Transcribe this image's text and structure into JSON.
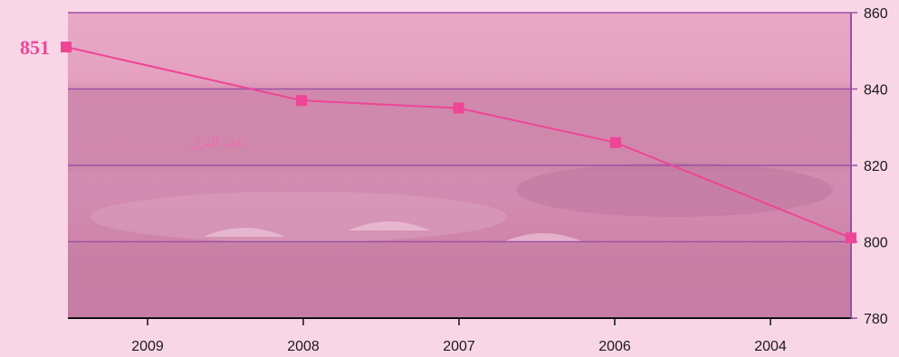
{
  "colors": {
    "page_background": "#f9d6e6",
    "plot_background": "#e7a6c3",
    "plot_background_dark": "#c56f9a",
    "series": "#ee4596",
    "gridline": "#9b50a4",
    "axis": "#111111"
  },
  "chart_data": {
    "type": "line",
    "categories": [
      "2009",
      "2008",
      "2007",
      "2006",
      "2004"
    ],
    "series": [
      {
        "name": "عدد النزل",
        "x": [
          0.0,
          1.5,
          2.5,
          3.5,
          5.0
        ],
        "values": [
          851,
          837,
          835,
          826,
          801
        ]
      }
    ],
    "point_labels": [
      "851",
      "",
      "",
      "",
      ""
    ],
    "yticks": [
      780,
      800,
      820,
      840,
      860
    ],
    "ylim": [
      780,
      860
    ],
    "y_axis_position": "right",
    "grid": true,
    "title": "",
    "xlabel": "",
    "ylabel": ""
  }
}
